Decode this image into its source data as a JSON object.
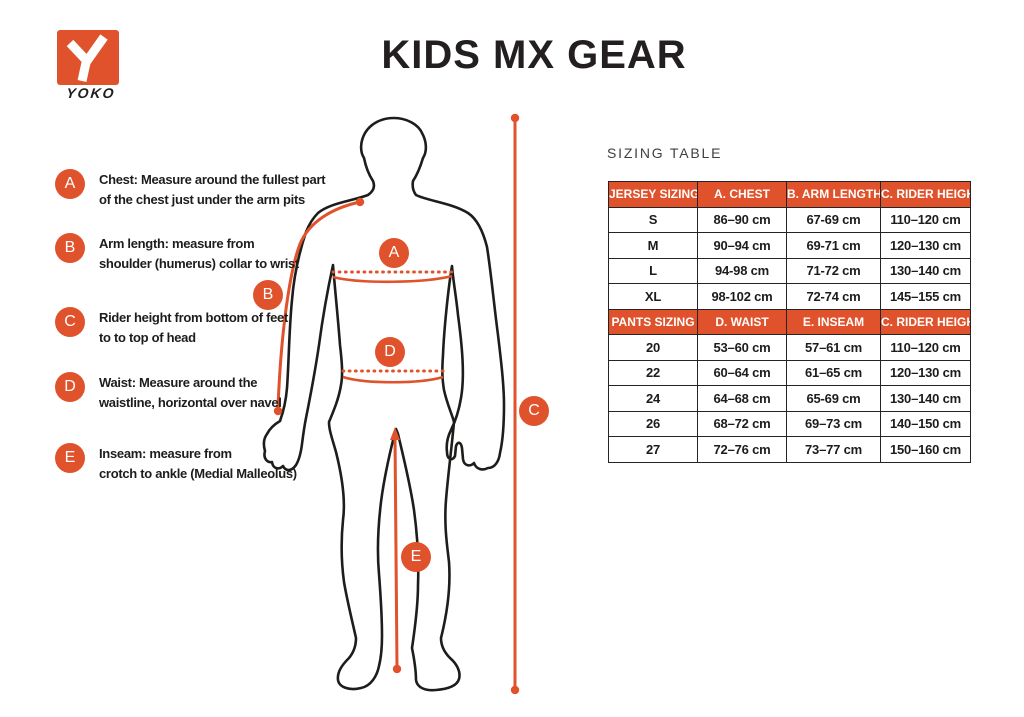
{
  "page": {
    "title": "KIDS MX GEAR"
  },
  "logo": {
    "brand": "YOKO"
  },
  "legend": {
    "items": [
      {
        "letter": "A",
        "line1": "Chest: Measure around  the fullest part",
        "line2": "of the chest just under the arm pits"
      },
      {
        "letter": "B",
        "line1": "Arm length: measure from",
        "line2": "shoulder (humerus) collar to wrist"
      },
      {
        "letter": "C",
        "line1": "Rider height from bottom of feet",
        "line2": "to to top of head"
      },
      {
        "letter": "D",
        "line1": "Waist: Measure around the",
        "line2": "waistline, horizontal over navel"
      },
      {
        "letter": "E",
        "line1": "Inseam: measure from",
        "line2": "crotch to ankle (Medial Malleolus)"
      }
    ]
  },
  "diagram": {
    "markers": {
      "a": "A",
      "b": "B",
      "c": "C",
      "d": "D",
      "e": "E"
    }
  },
  "sizing_table": {
    "heading": "SIZING TABLE",
    "sections": [
      {
        "header": [
          "JERSEY SIZING",
          "A. CHEST",
          "B. ARM LENGTH",
          "C. RIDER HEIGHT"
        ],
        "rows": [
          [
            "S",
            "86–90 cm",
            "67-69 cm",
            "110–120 cm"
          ],
          [
            "M",
            "90–94 cm",
            "69-71 cm",
            "120–130 cm"
          ],
          [
            "L",
            "94-98 cm",
            "71-72 cm",
            "130–140 cm"
          ],
          [
            "XL",
            "98-102 cm",
            "72-74 cm",
            "145–155 cm"
          ]
        ]
      },
      {
        "header": [
          "PANTS SIZING",
          "D. WAIST",
          "E. INSEAM",
          "C. RIDER HEIGHT"
        ],
        "rows": [
          [
            "20",
            "53–60 cm",
            "57–61 cm",
            "110–120 cm"
          ],
          [
            "22",
            "60–64 cm",
            "61–65 cm",
            "120–130 cm"
          ],
          [
            "24",
            "64–68 cm",
            "65-69 cm",
            "130–140 cm"
          ],
          [
            "26",
            "68–72 cm",
            "69–73 cm",
            "140–150 cm"
          ],
          [
            "27",
            "72–76 cm",
            "73–77 cm",
            "150–160 cm"
          ]
        ]
      }
    ]
  },
  "colors": {
    "accent": "#e0522b",
    "ink": "#1d1d1b"
  }
}
